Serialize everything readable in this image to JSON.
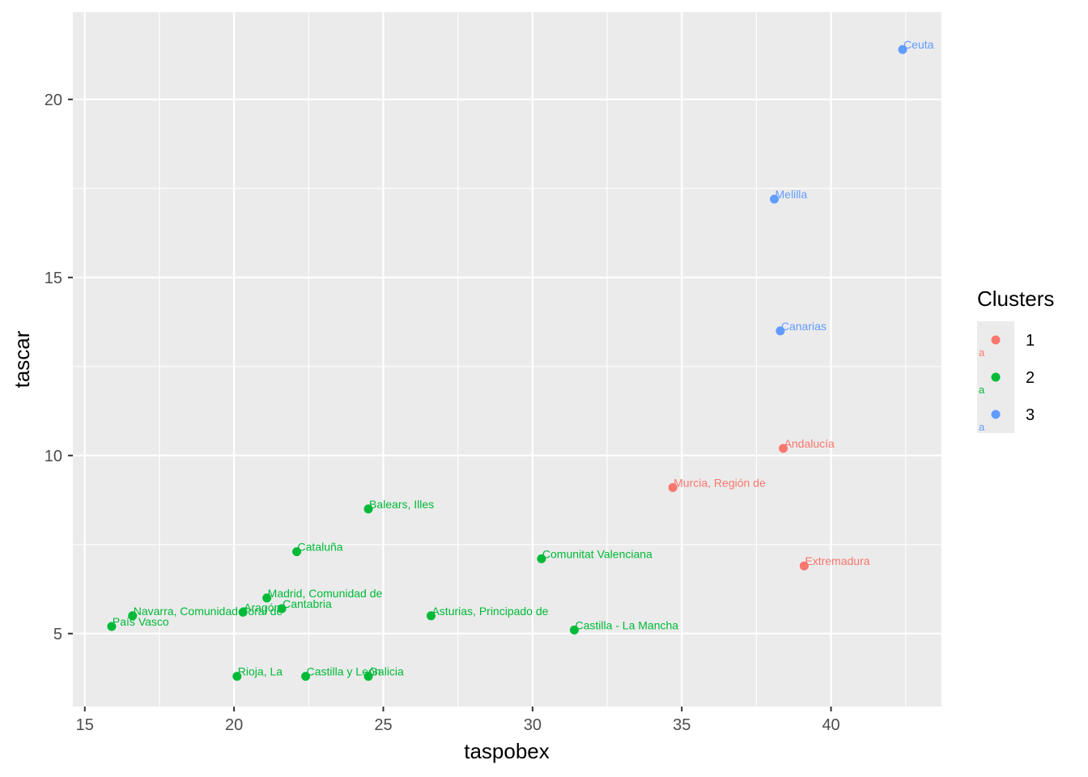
{
  "chart_data": {
    "type": "scatter",
    "title": "",
    "xlabel": "taspobex",
    "ylabel": "tascar",
    "xlim": [
      14.6,
      43.7
    ],
    "ylim": [
      2.95,
      22.45
    ],
    "x_ticks": [
      15,
      20,
      25,
      30,
      35,
      40
    ],
    "y_ticks": [
      5,
      10,
      15,
      20
    ],
    "x_tick_labels": [
      "15",
      "20",
      "25",
      "30",
      "35",
      "40"
    ],
    "y_tick_labels": [
      "5",
      "10",
      "15",
      "20"
    ],
    "grid": true,
    "legend": {
      "title": "Clusters",
      "position": "right",
      "entries": [
        {
          "label": "1",
          "color": "#F8766D"
        },
        {
          "label": "2",
          "color": "#00BA38"
        },
        {
          "label": "3",
          "color": "#619CFF"
        }
      ],
      "key_text": "a"
    },
    "series": [
      {
        "name": "1",
        "color": "#F8766D",
        "points": [
          {
            "x": 38.4,
            "y": 10.2,
            "label": "Andalucía"
          },
          {
            "x": 34.7,
            "y": 9.1,
            "label": "Murcia, Región de"
          },
          {
            "x": 39.1,
            "y": 6.9,
            "label": "Extremadura"
          }
        ]
      },
      {
        "name": "2",
        "color": "#00BA38",
        "points": [
          {
            "x": 24.5,
            "y": 8.5,
            "label": "Balears, Illes"
          },
          {
            "x": 22.1,
            "y": 7.3,
            "label": "Cataluña"
          },
          {
            "x": 30.3,
            "y": 7.1,
            "label": "Comunitat Valenciana"
          },
          {
            "x": 21.1,
            "y": 6.0,
            "label": "Madrid, Comunidad de"
          },
          {
            "x": 21.6,
            "y": 5.7,
            "label": "Cantabria"
          },
          {
            "x": 20.3,
            "y": 5.6,
            "label": "Aragón"
          },
          {
            "x": 16.6,
            "y": 5.5,
            "label": "Navarra, Comunidad Foral de"
          },
          {
            "x": 15.9,
            "y": 5.2,
            "label": "País Vasco"
          },
          {
            "x": 26.6,
            "y": 5.5,
            "label": "Asturias, Principado de"
          },
          {
            "x": 31.4,
            "y": 5.1,
            "label": "Castilla - La Mancha"
          },
          {
            "x": 20.1,
            "y": 3.8,
            "label": "Rioja, La"
          },
          {
            "x": 22.4,
            "y": 3.8,
            "label": "Castilla y León"
          },
          {
            "x": 24.5,
            "y": 3.8,
            "label": "Galicia"
          }
        ]
      },
      {
        "name": "3",
        "color": "#619CFF",
        "points": [
          {
            "x": 42.4,
            "y": 21.4,
            "label": "Ceuta"
          },
          {
            "x": 38.1,
            "y": 17.2,
            "label": "Melilla"
          },
          {
            "x": 38.3,
            "y": 13.5,
            "label": "Canarias"
          }
        ]
      }
    ]
  }
}
